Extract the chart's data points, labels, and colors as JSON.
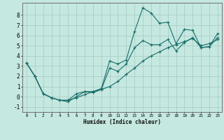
{
  "xlabel": "Humidex (Indice chaleur)",
  "xlim": [
    -0.5,
    23.5
  ],
  "ylim": [
    -1.5,
    9.2
  ],
  "xticks": [
    0,
    1,
    2,
    3,
    4,
    5,
    6,
    7,
    8,
    9,
    10,
    11,
    12,
    13,
    14,
    15,
    16,
    17,
    18,
    19,
    20,
    21,
    22,
    23
  ],
  "yticks": [
    -1,
    0,
    1,
    2,
    3,
    4,
    5,
    6,
    7,
    8
  ],
  "bg_color": "#c5e8e0",
  "grid_color": "#aacfc8",
  "line_color": "#1a6e6a",
  "lines": [
    {
      "x": [
        0,
        1,
        2,
        3,
        4,
        5,
        6,
        7,
        8,
        9,
        10,
        11,
        12,
        13,
        14,
        15,
        16,
        17,
        18,
        19,
        20,
        21,
        22,
        23
      ],
      "y": [
        3.3,
        2.0,
        0.3,
        -0.1,
        -0.35,
        -0.35,
        -0.1,
        0.2,
        0.5,
        0.8,
        3.5,
        3.2,
        3.6,
        6.4,
        8.7,
        8.2,
        7.2,
        7.3,
        5.2,
        6.6,
        6.5,
        4.8,
        4.9,
        6.2
      ]
    },
    {
      "x": [
        0,
        1,
        2,
        3,
        4,
        5,
        6,
        7,
        8,
        9,
        10,
        11,
        12,
        13,
        14,
        15,
        16,
        17,
        18,
        19,
        20,
        21,
        22,
        23
      ],
      "y": [
        3.3,
        2.0,
        0.3,
        -0.1,
        -0.35,
        -0.35,
        0.3,
        0.5,
        0.5,
        0.7,
        2.8,
        2.5,
        3.2,
        4.8,
        5.5,
        5.1,
        5.1,
        5.6,
        4.5,
        5.3,
        5.8,
        4.8,
        4.9,
        5.8
      ]
    },
    {
      "x": [
        0,
        1,
        2,
        3,
        4,
        5,
        6,
        7,
        8,
        9,
        10,
        11,
        12,
        13,
        14,
        15,
        16,
        17,
        18,
        19,
        20,
        21,
        22,
        23
      ],
      "y": [
        3.3,
        2.0,
        0.3,
        -0.1,
        -0.35,
        -0.5,
        0.0,
        0.5,
        0.4,
        0.7,
        1.0,
        1.5,
        2.2,
        2.8,
        3.5,
        4.0,
        4.4,
        4.8,
        5.1,
        5.4,
        5.7,
        5.0,
        5.2,
        5.6
      ]
    }
  ]
}
